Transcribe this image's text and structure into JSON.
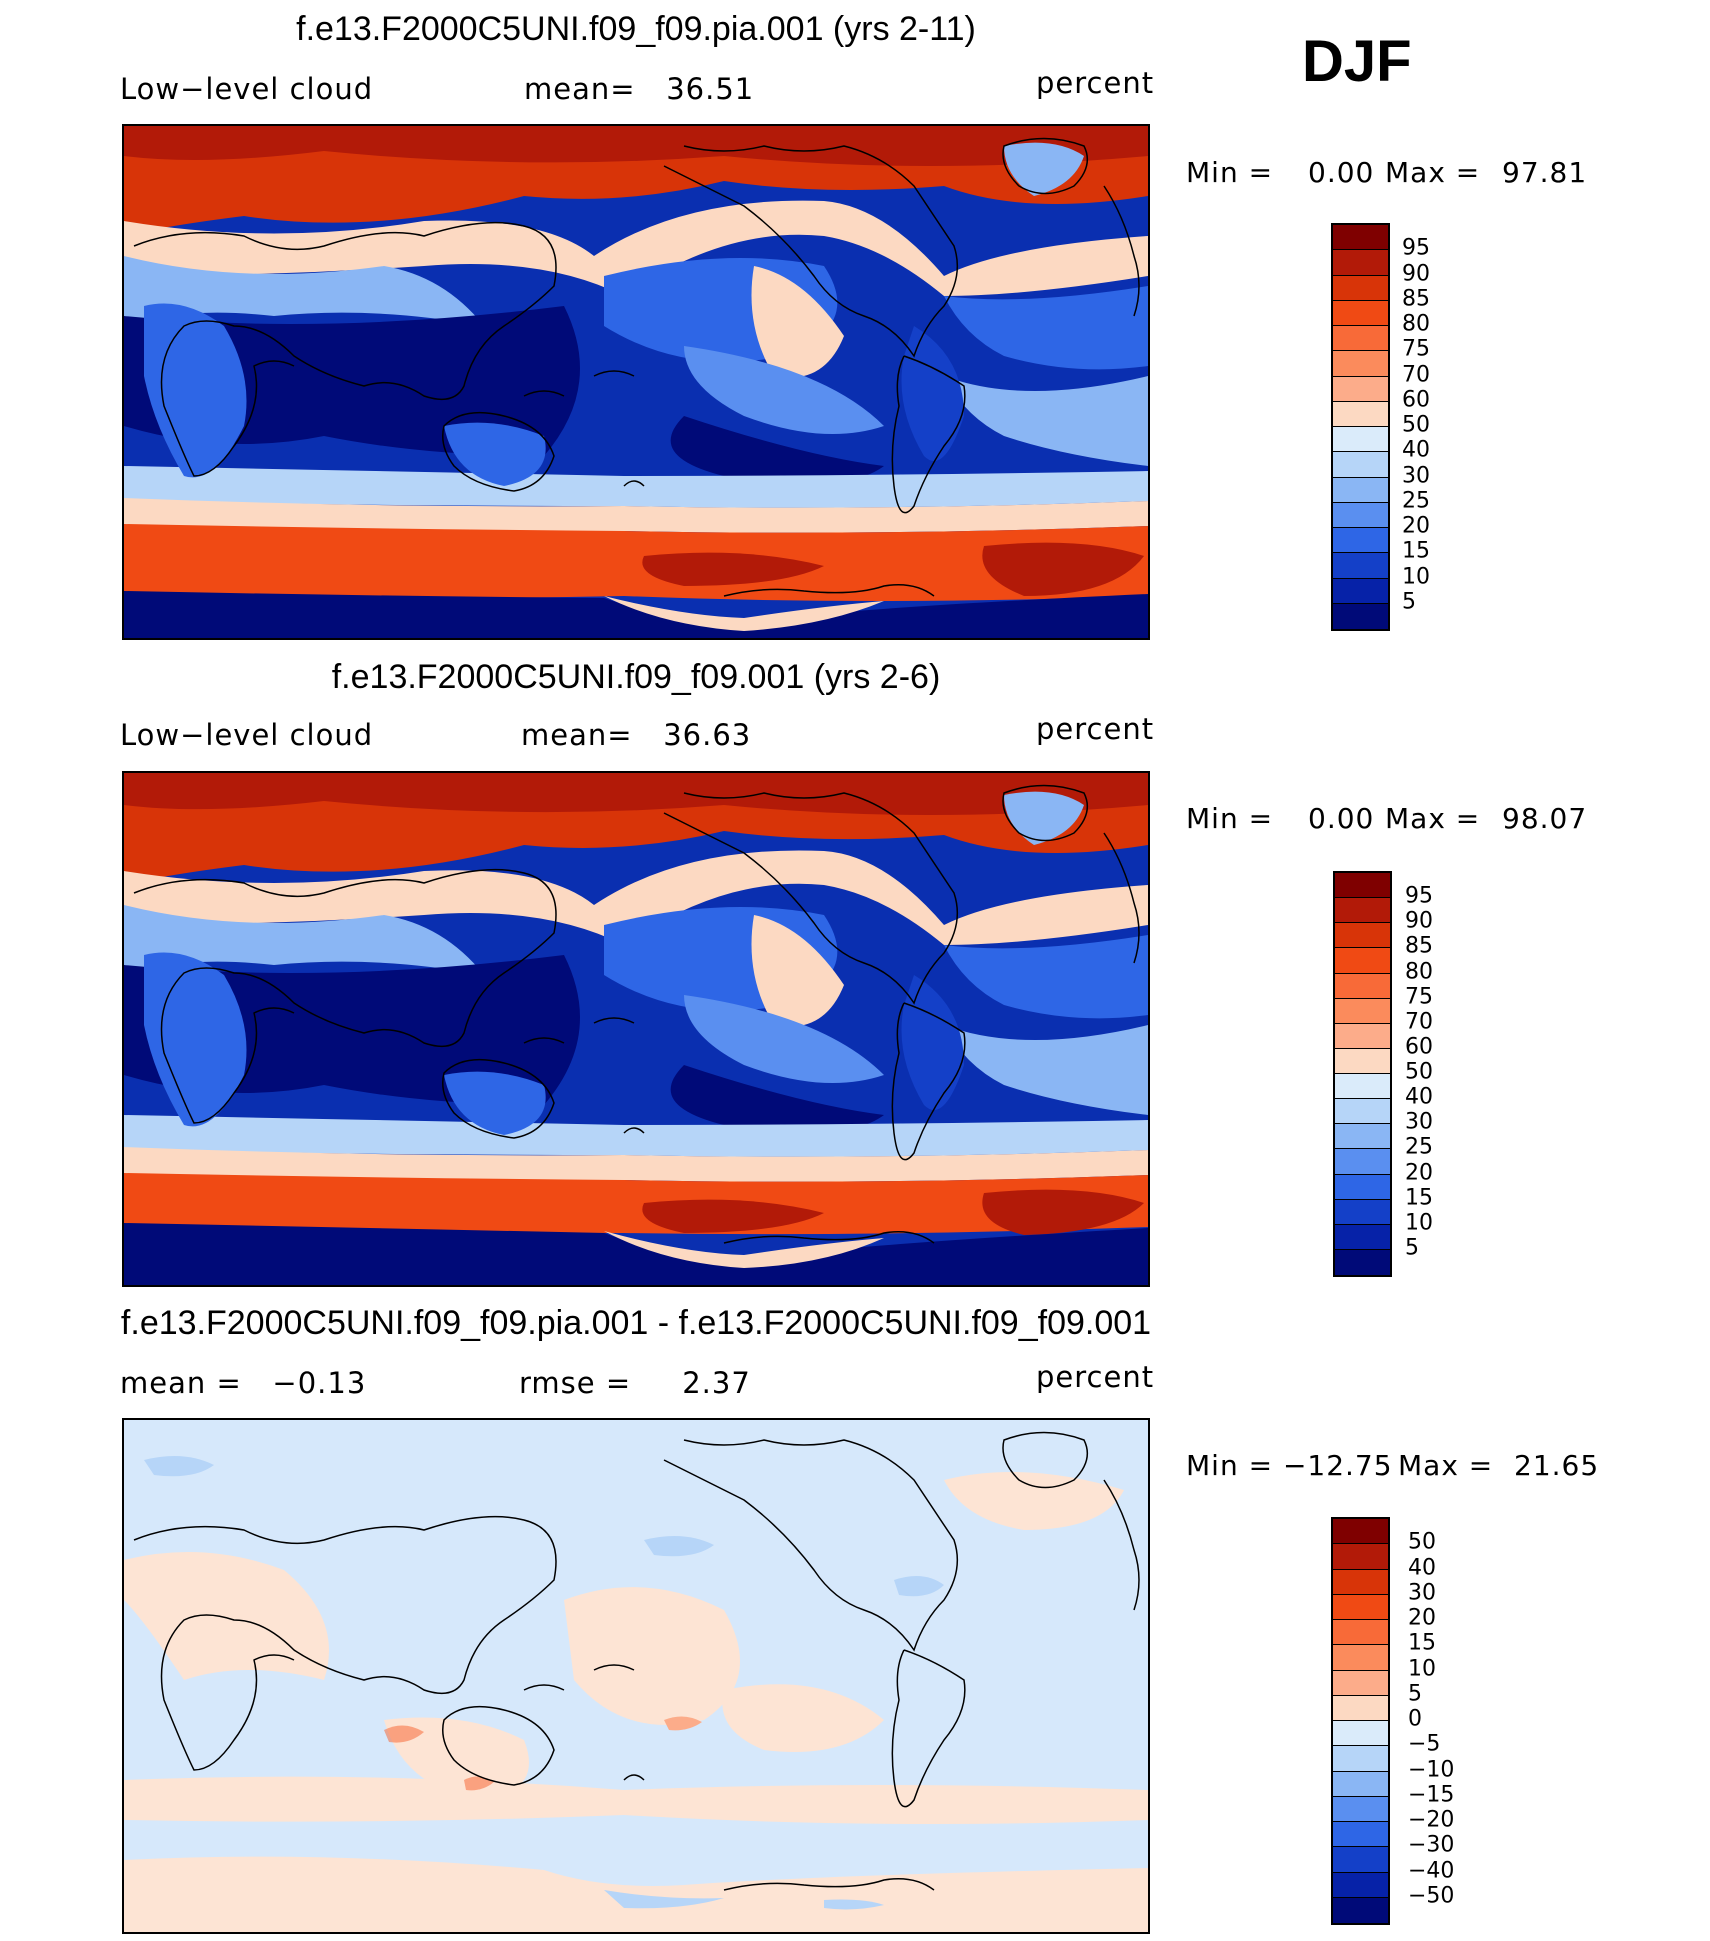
{
  "season": "DJF",
  "panels": [
    {
      "title": "f.e13.F2000C5UNI.f09_f09.pia.001 (yrs 2-11)",
      "left_label": "Low−level cloud",
      "center_label": "mean=   36.51",
      "right_label": "percent",
      "min_label": "Min =",
      "min_value": "0.00",
      "max_label": "Max =",
      "max_value": "97.81",
      "kind": "field",
      "colorbar_labels": [
        "95",
        "90",
        "85",
        "80",
        "75",
        "70",
        "60",
        "50",
        "40",
        "30",
        "25",
        "20",
        "15",
        "10",
        "5"
      ]
    },
    {
      "title": "f.e13.F2000C5UNI.f09_f09.001 (yrs 2-6)",
      "left_label": "Low−level cloud",
      "center_label": "mean=   36.63",
      "right_label": "percent",
      "min_label": "Min =",
      "min_value": "0.00",
      "max_label": "Max =",
      "max_value": "98.07",
      "kind": "field",
      "colorbar_labels": [
        "95",
        "90",
        "85",
        "80",
        "75",
        "70",
        "60",
        "50",
        "40",
        "30",
        "25",
        "20",
        "15",
        "10",
        "5"
      ]
    },
    {
      "title": "f.e13.F2000C5UNI.f09_f09.pia.001 - f.e13.F2000C5UNI.f09_f09.001",
      "left_label": "mean =   −0.13",
      "center_label": "rmse =     2.37",
      "right_label": "percent",
      "min_label": "Min = −12.75",
      "min_value": "",
      "max_label": "Max =",
      "max_value": "21.65",
      "kind": "diff",
      "colorbar_labels": [
        "50",
        "40",
        "30",
        "20",
        "15",
        "10",
        "5",
        "0",
        "−5",
        "−10",
        "−15",
        "−20",
        "−30",
        "−40",
        "−50"
      ]
    }
  ],
  "colors": {
    "scale": [
      "#7f0000",
      "#b21a08",
      "#d83408",
      "#f04a14",
      "#f86a38",
      "#fb8b5c",
      "#fcac8a",
      "#fcd9c2",
      "#daebfa",
      "#b6d5f8",
      "#8ab6f4",
      "#5a8ff0",
      "#2e66e6",
      "#1440c8",
      "#0622a8",
      "#000a78"
    ],
    "ocean_low": "#0a2fb0",
    "diff_pos": "#fde4d4",
    "diff_neg": "#d6e8fb"
  }
}
